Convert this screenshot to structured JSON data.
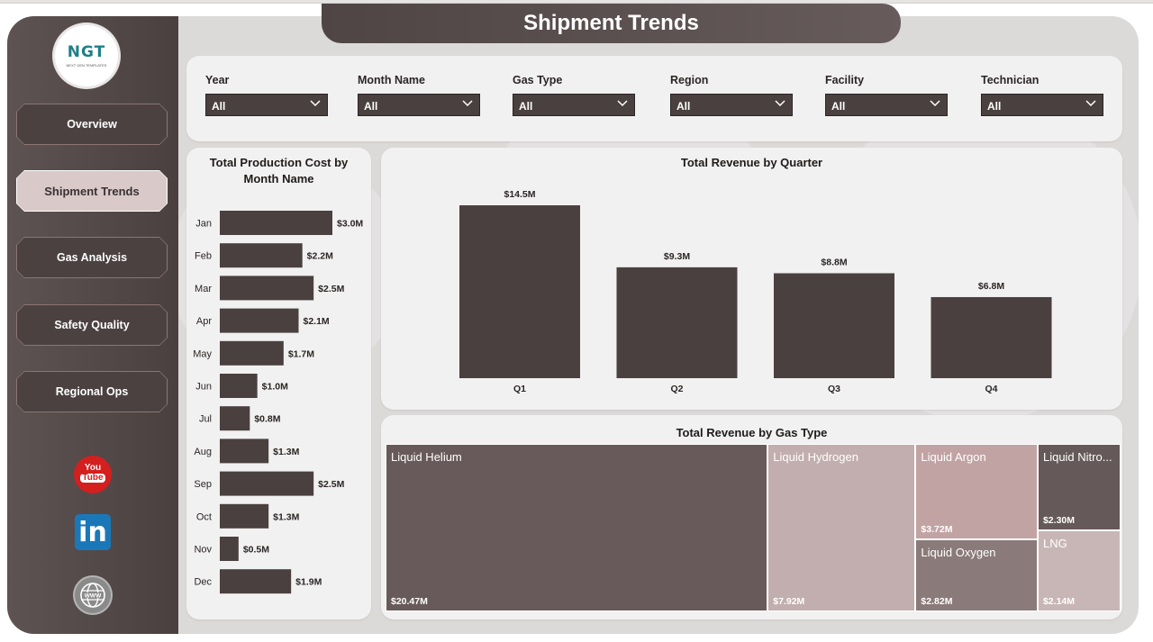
{
  "page": {
    "title": "Shipment Trends"
  },
  "logo": {
    "text": "NGT",
    "subtitle": "NEXT GEN TEMPLATES"
  },
  "nav": {
    "items": [
      {
        "label": "Overview",
        "active": false
      },
      {
        "label": "Shipment Trends",
        "active": true
      },
      {
        "label": "Gas Analysis",
        "active": false
      },
      {
        "label": "Safety Quality",
        "active": false
      },
      {
        "label": "Regional Ops",
        "active": false
      }
    ]
  },
  "social": {
    "youtube_top": "You",
    "youtube_bottom": "Tube",
    "linkedin": "in"
  },
  "filters": [
    {
      "label": "Year",
      "value": "All"
    },
    {
      "label": "Month Name",
      "value": "All"
    },
    {
      "label": "Gas Type",
      "value": "All"
    },
    {
      "label": "Region",
      "value": "All"
    },
    {
      "label": "Facility",
      "value": "All"
    },
    {
      "label": "Technician",
      "value": "All"
    }
  ],
  "colors": {
    "bar": "#4a4040",
    "sidebar": "#4f4545",
    "accent_light": "#d9c9c9"
  },
  "chart_data": [
    {
      "type": "bar",
      "orientation": "horizontal",
      "title": "Total Production Cost by Month Name",
      "categories": [
        "Jan",
        "Feb",
        "Mar",
        "Apr",
        "May",
        "Jun",
        "Jul",
        "Aug",
        "Sep",
        "Oct",
        "Nov",
        "Dec"
      ],
      "values": [
        3.0,
        2.2,
        2.5,
        2.1,
        1.7,
        1.0,
        0.8,
        1.3,
        2.5,
        1.3,
        0.5,
        1.9
      ],
      "labels": [
        "$3.0M",
        "$2.2M",
        "$2.5M",
        "$2.1M",
        "$1.7M",
        "$1.0M",
        "$0.8M",
        "$1.3M",
        "$2.5M",
        "$1.3M",
        "$0.5M",
        "$1.9M"
      ],
      "unit": "$M"
    },
    {
      "type": "bar",
      "title": "Total Revenue by Quarter",
      "categories": [
        "Q1",
        "Q2",
        "Q3",
        "Q4"
      ],
      "values": [
        14.5,
        9.3,
        8.8,
        6.8
      ],
      "labels": [
        "$14.5M",
        "$9.3M",
        "$8.8M",
        "$6.8M"
      ],
      "unit": "$M"
    },
    {
      "type": "treemap",
      "title": "Total Revenue by Gas Type",
      "items": [
        {
          "name": "Liquid Helium",
          "value": 20.47,
          "label": "$20.47M",
          "color": "#685a5a"
        },
        {
          "name": "Liquid Hydrogen",
          "value": 7.92,
          "label": "$7.92M",
          "color": "#c2aeae"
        },
        {
          "name": "Liquid Argon",
          "value": 3.72,
          "label": "$3.72M",
          "color": "#c2a3a3"
        },
        {
          "name": "Liquid Oxygen",
          "value": 2.82,
          "label": "$2.82M",
          "color": "#8a7a7a"
        },
        {
          "name": "Liquid Nitro...",
          "value": 2.3,
          "label": "$2.30M",
          "color": "#655959"
        },
        {
          "name": "LNG",
          "value": 2.14,
          "label": "$2.14M",
          "color": "#c8b6b6"
        }
      ]
    }
  ]
}
